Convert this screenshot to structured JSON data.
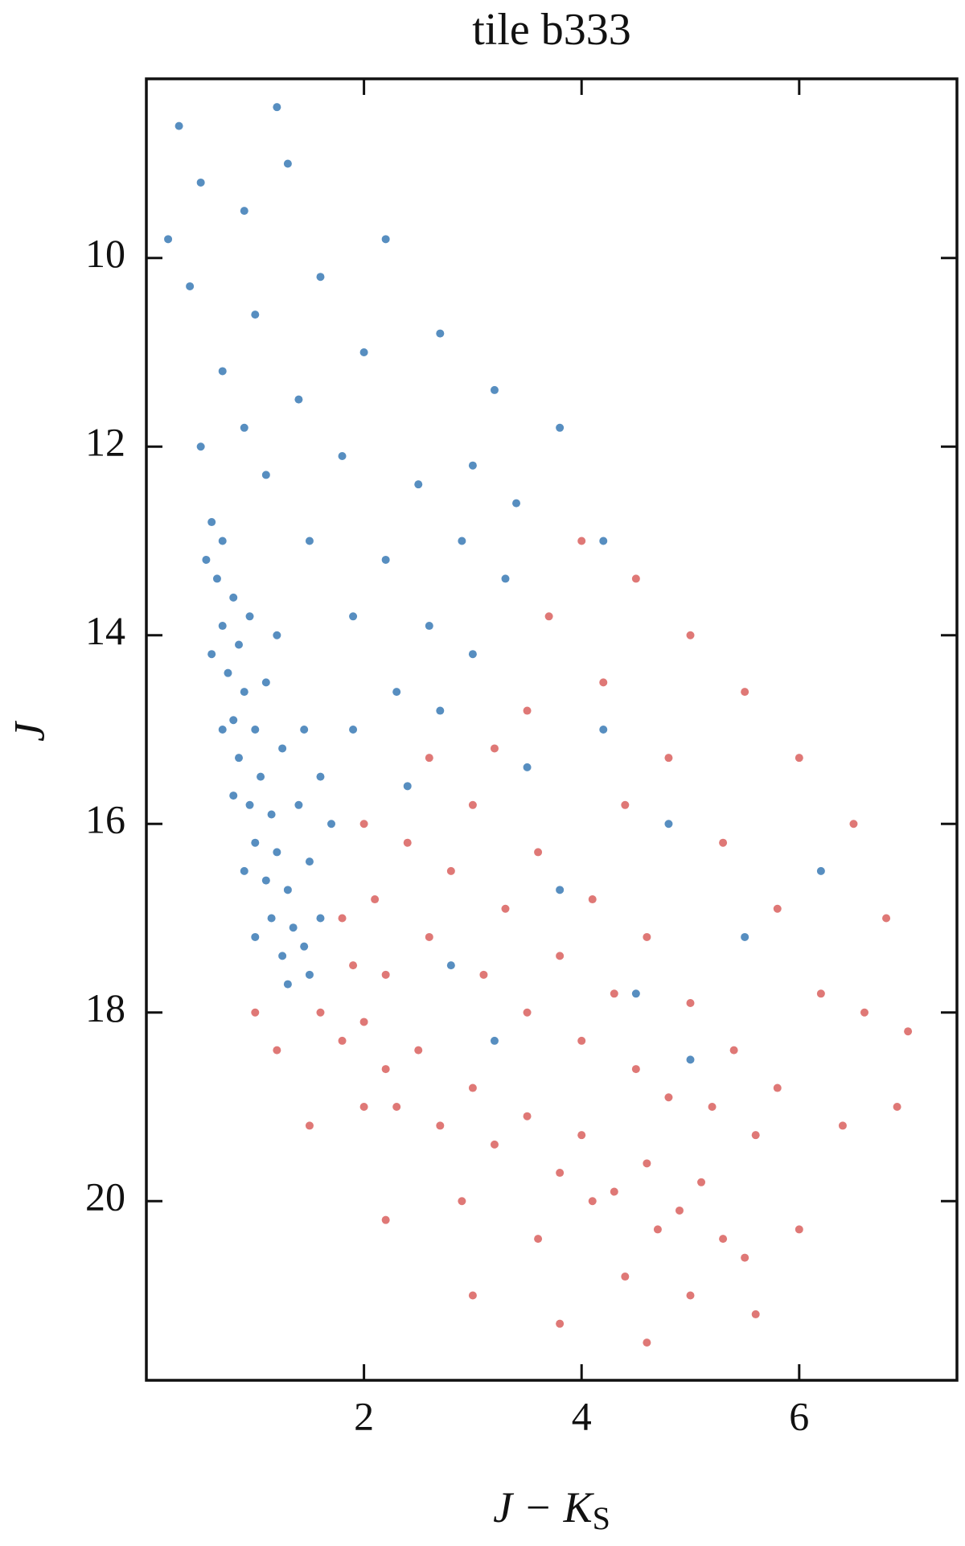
{
  "chart_data": {
    "type": "scatter",
    "title": "tile b333",
    "xlabel": "J − K",
    "xlabel_subscript": "S",
    "ylabel": "J",
    "xlim": [
      0,
      7.45
    ],
    "ylim": [
      21.9,
      8.1
    ],
    "y_inverted": true,
    "xticks": [
      2,
      4,
      6
    ],
    "yticks": [
      10,
      12,
      14,
      16,
      18,
      20
    ],
    "series": [
      {
        "color": "#3a7ab5",
        "x": [
          0.6,
          0.7,
          0.65,
          0.8,
          0.7,
          0.85,
          0.75,
          0.9,
          0.8,
          1.0,
          0.85,
          1.05,
          0.95,
          1.15,
          1.0,
          1.2,
          1.1,
          1.3,
          1.15,
          1.35,
          1.25,
          1.45,
          1.3,
          1.5,
          1.6,
          1.5,
          1.4,
          1.25,
          1.1,
          0.95,
          0.6,
          0.7,
          0.8,
          0.9,
          1.0,
          1.7,
          1.6,
          1.45,
          0.55,
          1.2,
          0.3,
          0.5,
          0.9,
          1.3,
          0.4,
          1.0,
          1.6,
          2.2,
          0.7,
          1.4,
          2.0,
          2.7,
          3.2,
          0.5,
          1.1,
          1.8,
          2.5,
          3.0,
          3.4,
          1.5,
          2.2,
          2.9,
          3.3,
          1.9,
          2.6,
          3.0,
          2.3,
          2.7,
          1.9,
          3.8,
          4.2,
          0.2,
          1.2,
          2.4,
          0.9,
          3.5,
          4.2,
          4.8,
          3.8,
          5.5,
          4.5,
          3.2,
          5.0,
          6.2,
          2.8
        ],
        "y": [
          12.8,
          13.0,
          13.4,
          13.6,
          13.9,
          14.1,
          14.4,
          14.6,
          14.9,
          15.0,
          15.3,
          15.5,
          15.8,
          15.9,
          16.2,
          16.3,
          16.6,
          16.7,
          17.0,
          17.1,
          17.4,
          17.3,
          17.7,
          17.6,
          17.0,
          16.4,
          15.8,
          15.2,
          14.5,
          13.8,
          14.2,
          15.0,
          15.7,
          16.5,
          17.2,
          16.0,
          15.5,
          15.0,
          13.2,
          14.0,
          8.6,
          9.2,
          9.5,
          9.0,
          10.3,
          10.6,
          10.2,
          9.8,
          11.2,
          11.5,
          11.0,
          10.8,
          11.4,
          12.0,
          12.3,
          12.1,
          12.4,
          12.2,
          12.6,
          13.0,
          13.2,
          13.0,
          13.4,
          13.8,
          13.9,
          14.2,
          14.6,
          14.8,
          15.0,
          11.8,
          13.0,
          9.8,
          8.4,
          15.6,
          11.8,
          15.4,
          15.0,
          16.0,
          16.7,
          17.2,
          17.8,
          18.3,
          18.5,
          16.5,
          17.5
        ]
      },
      {
        "color": "#d9605e",
        "x": [
          1.6,
          1.8,
          2.0,
          2.2,
          2.5,
          2.3,
          2.7,
          3.0,
          3.2,
          3.5,
          3.8,
          4.0,
          4.3,
          4.6,
          4.9,
          5.1,
          5.3,
          5.5,
          4.7,
          4.1,
          1.9,
          2.1,
          2.4,
          2.6,
          2.8,
          3.0,
          3.1,
          3.3,
          3.5,
          3.6,
          3.8,
          4.0,
          4.1,
          4.3,
          4.5,
          4.6,
          4.8,
          5.0,
          5.2,
          5.4,
          5.6,
          5.8,
          2.6,
          3.2,
          2.2,
          2.0,
          2.9,
          3.6,
          4.4,
          5.0,
          1.2,
          1.0,
          1.5,
          2.2,
          3.0,
          3.8,
          4.6,
          5.6,
          6.0,
          6.4,
          6.6,
          6.8,
          6.5,
          6.0,
          5.5,
          5.0,
          4.5,
          4.0,
          3.7,
          4.2,
          4.8,
          5.3,
          5.8,
          6.2,
          7.0,
          6.9,
          3.5,
          2.0,
          1.8,
          4.4
        ],
        "y": [
          18.0,
          18.3,
          18.1,
          18.6,
          18.4,
          19.0,
          19.2,
          18.8,
          19.4,
          19.1,
          19.7,
          19.3,
          19.9,
          19.6,
          20.1,
          19.8,
          20.4,
          20.6,
          20.3,
          20.0,
          17.5,
          16.8,
          16.2,
          17.2,
          16.5,
          15.8,
          17.6,
          16.9,
          18.0,
          16.3,
          17.4,
          18.3,
          16.8,
          17.8,
          18.6,
          17.2,
          18.9,
          17.9,
          19.0,
          18.4,
          19.3,
          18.8,
          15.3,
          15.2,
          17.6,
          19.0,
          20.0,
          20.4,
          20.8,
          21.0,
          18.4,
          18.0,
          19.2,
          20.2,
          21.0,
          21.3,
          21.5,
          21.2,
          20.3,
          19.2,
          18.0,
          17.0,
          16.0,
          15.3,
          14.6,
          14.0,
          13.4,
          13.0,
          13.8,
          14.5,
          15.3,
          16.2,
          16.9,
          17.8,
          18.2,
          19.0,
          14.8,
          16.0,
          17.0,
          15.8
        ]
      }
    ]
  }
}
